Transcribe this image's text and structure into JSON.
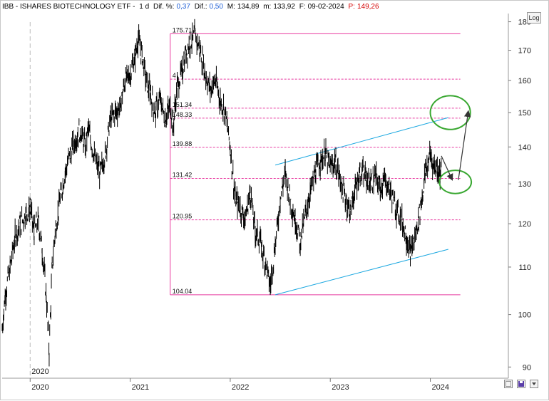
{
  "header": {
    "ticker": "IBB - ISHARES BIOTECHNOLOGY ETF -",
    "period": "1 d",
    "diff_pct_label": "Dif. %:",
    "diff_pct_value": "0,37",
    "diff_label": "Dif.:",
    "diff_value": "0,50",
    "max_label": "M:",
    "max_value": "134,89",
    "min_label": "m:",
    "min_value": "133,92",
    "date_label": "F:",
    "date_value": "09-02-2024",
    "price_label": "P:",
    "price_value": "149,26"
  },
  "log_button_label": "Log",
  "colors": {
    "fib_lines": "#e83ba0",
    "channel_lines": "#1aa7e0",
    "ellipses": "#3aa832",
    "arrows": "#333333",
    "price_bars": "#000000",
    "header_values_blue": "#1f5fd6",
    "header_price_red": "#d40000"
  },
  "icons": {
    "bottom_controls": [
      "chart-settings-icon",
      "save-icon",
      "dropdown-arrow-icon"
    ]
  },
  "chart_data": {
    "type": "ohlc-bars",
    "y_scale": "log",
    "ylim": [
      88,
      183
    ],
    "yticks": [
      90,
      100,
      110,
      120,
      130,
      140,
      150,
      160,
      170,
      180
    ],
    "x_range": [
      2019.72,
      2024.78
    ],
    "xticks": [
      "2020",
      "2021",
      "2022",
      "2023",
      "2024"
    ],
    "year_marker_label": "2020",
    "series": [
      {
        "values": [
          [
            2019.72,
            97
          ],
          [
            2019.75,
            104
          ],
          [
            2019.8,
            110
          ],
          [
            2019.85,
            117
          ],
          [
            2019.9,
            120
          ],
          [
            2019.95,
            122
          ],
          [
            2020.0,
            124
          ],
          [
            2020.04,
            118
          ],
          [
            2020.08,
            121
          ],
          [
            2020.12,
            114
          ],
          [
            2020.16,
            104
          ],
          [
            2020.19,
            93
          ],
          [
            2020.22,
            110
          ],
          [
            2020.25,
            118
          ],
          [
            2020.3,
            126
          ],
          [
            2020.35,
            133
          ],
          [
            2020.4,
            138
          ],
          [
            2020.45,
            142
          ],
          [
            2020.5,
            145
          ],
          [
            2020.55,
            140
          ],
          [
            2020.58,
            145
          ],
          [
            2020.62,
            140
          ],
          [
            2020.65,
            136
          ],
          [
            2020.7,
            133
          ],
          [
            2020.75,
            138
          ],
          [
            2020.8,
            148
          ],
          [
            2020.85,
            150
          ],
          [
            2020.9,
            152
          ],
          [
            2020.95,
            160
          ],
          [
            2021.0,
            162
          ],
          [
            2021.05,
            168
          ],
          [
            2021.08,
            174
          ],
          [
            2021.12,
            168
          ],
          [
            2021.16,
            160
          ],
          [
            2021.2,
            156
          ],
          [
            2021.25,
            150
          ],
          [
            2021.3,
            154
          ],
          [
            2021.35,
            148
          ],
          [
            2021.4,
            152
          ],
          [
            2021.43,
            146
          ],
          [
            2021.47,
            158
          ],
          [
            2021.52,
            163
          ],
          [
            2021.55,
            168
          ],
          [
            2021.6,
            173
          ],
          [
            2021.65,
            175
          ],
          [
            2021.7,
            170
          ],
          [
            2021.75,
            162
          ],
          [
            2021.8,
            157
          ],
          [
            2021.85,
            160
          ],
          [
            2021.9,
            154
          ],
          [
            2021.95,
            150
          ],
          [
            2022.0,
            140
          ],
          [
            2022.05,
            126
          ],
          [
            2022.1,
            124
          ],
          [
            2022.15,
            121
          ],
          [
            2022.2,
            128
          ],
          [
            2022.25,
            118
          ],
          [
            2022.3,
            116
          ],
          [
            2022.35,
            111
          ],
          [
            2022.4,
            106
          ],
          [
            2022.45,
            115
          ],
          [
            2022.5,
            126
          ],
          [
            2022.55,
            133
          ],
          [
            2022.6,
            126
          ],
          [
            2022.65,
            121
          ],
          [
            2022.7,
            116
          ],
          [
            2022.75,
            122
          ],
          [
            2022.8,
            128
          ],
          [
            2022.85,
            133
          ],
          [
            2022.9,
            136
          ],
          [
            2022.95,
            138
          ],
          [
            2023.0,
            134
          ],
          [
            2023.05,
            136
          ],
          [
            2023.1,
            131
          ],
          [
            2023.15,
            126
          ],
          [
            2023.2,
            123
          ],
          [
            2023.25,
            129
          ],
          [
            2023.3,
            133
          ],
          [
            2023.35,
            132
          ],
          [
            2023.4,
            130
          ],
          [
            2023.45,
            132
          ],
          [
            2023.5,
            129
          ],
          [
            2023.55,
            131
          ],
          [
            2023.6,
            128
          ],
          [
            2023.65,
            124
          ],
          [
            2023.7,
            122
          ],
          [
            2023.75,
            118
          ],
          [
            2023.8,
            113
          ],
          [
            2023.85,
            117
          ],
          [
            2023.88,
            121
          ],
          [
            2023.92,
            127
          ],
          [
            2023.95,
            133
          ],
          [
            2024.0,
            138
          ],
          [
            2024.03,
            135
          ],
          [
            2024.07,
            134
          ],
          [
            2024.11,
            133
          ]
        ]
      }
    ],
    "fibonacci_levels": [
      {
        "value": 175.71,
        "label": "175.71"
      },
      {
        "value": 160.4,
        "label": "4"
      },
      {
        "value": 151.34,
        "label": "151.34"
      },
      {
        "value": 148.33,
        "label": "148.33"
      },
      {
        "value": 139.88,
        "label": "139.88"
      },
      {
        "value": 131.42,
        "label": "131.42"
      },
      {
        "value": 120.95,
        "label": "120.95"
      },
      {
        "value": 104.04,
        "label": "104.04"
      }
    ],
    "fib_range": {
      "x_start": 2021.4,
      "x_end": 2024.3
    },
    "channel_lines": [
      {
        "x1": 2022.45,
        "y1": 135,
        "x2": 2024.18,
        "y2": 148.5
      },
      {
        "x1": 2022.45,
        "y1": 104.04,
        "x2": 2024.18,
        "y2": 114
      }
    ],
    "ellipses": [
      {
        "cx": 2024.2,
        "cy": 150,
        "rx_years": 0.2,
        "ry_value": 5
      },
      {
        "cx": 2024.25,
        "cy": 130.5,
        "rx_years": 0.16,
        "ry_value": 3
      }
    ],
    "arrows": [
      {
        "from": [
          2024.11,
          137.5
        ],
        "to": [
          2024.22,
          131
        ]
      },
      {
        "from": [
          2024.28,
          131
        ],
        "to": [
          2024.38,
          150.5
        ]
      }
    ]
  }
}
